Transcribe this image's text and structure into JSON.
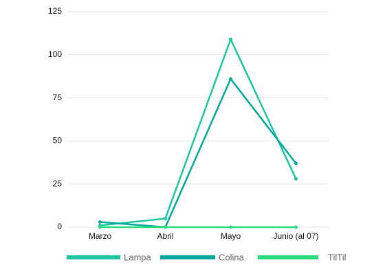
{
  "chart_data": {
    "type": "line",
    "categories": [
      "Marzo",
      "Abril",
      "Mayo",
      "Junio (al 07)"
    ],
    "series": [
      {
        "name": "Lampa",
        "color": "#1cc6a0",
        "values": [
          1,
          5,
          109,
          28
        ]
      },
      {
        "name": "Colina",
        "color": "#00a99b",
        "values": [
          3,
          0,
          86,
          37
        ]
      },
      {
        "name": "TilTil",
        "color": "#2bdb80",
        "values": [
          0,
          0,
          0,
          0
        ]
      }
    ],
    "ylim": [
      0,
      125
    ],
    "yticks": [
      0,
      25,
      50,
      75,
      100,
      125
    ],
    "grid": true,
    "legend": "bottom"
  }
}
